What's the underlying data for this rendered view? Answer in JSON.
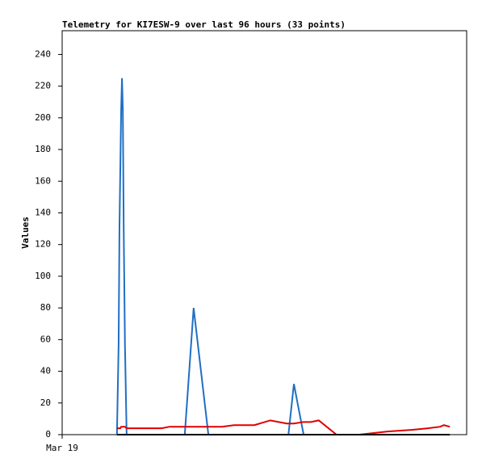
{
  "chart_data": {
    "type": "line",
    "title": "Telemetry for KI7ESW-9 over last 96 hours (33 points)",
    "y_label": "Values",
    "x": [
      13.0,
      13.4,
      13.6,
      13.8,
      14.0,
      14.2,
      14.4,
      14.6,
      14.9,
      15.3,
      23.6,
      25.5,
      29.1,
      31.2,
      34.7,
      37.9,
      40.8,
      45.6,
      49.4,
      53.3,
      53.7,
      55.0,
      57.3,
      59.0,
      60.9,
      65.1,
      70.5,
      77.2,
      82.9,
      86.8,
      89.7,
      90.6,
      92.0
    ],
    "series": [
      {
        "color": "#1f6fc5",
        "values": [
          0,
          57,
          131,
          168,
          205,
          225,
          205,
          131,
          57,
          0,
          0,
          0,
          0,
          80,
          0,
          0,
          0,
          0,
          0,
          0,
          0,
          32,
          0,
          0,
          0,
          0,
          0,
          0,
          0,
          0,
          0,
          0,
          0
        ]
      },
      {
        "color": "#e00000",
        "values": [
          4,
          4,
          4,
          4,
          5,
          5,
          5,
          5,
          5,
          4,
          4,
          5,
          5,
          5,
          5,
          5,
          6,
          6,
          9,
          7,
          7,
          7,
          8,
          8,
          9,
          0,
          0,
          2,
          3,
          4,
          5,
          6,
          5
        ]
      },
      {
        "color": "#000000",
        "values": [
          0,
          0,
          0,
          0,
          0,
          0,
          0,
          0,
          0,
          0,
          0,
          0,
          0,
          0,
          0,
          0,
          0,
          0,
          0,
          0,
          0,
          0,
          0,
          0,
          0,
          0,
          0,
          0,
          0,
          0,
          0,
          0,
          0
        ]
      }
    ],
    "xlim": [
      0,
      96
    ],
    "xticks": [
      {
        "value": 0,
        "label": "Mar 19"
      }
    ],
    "ylim": [
      0,
      255
    ],
    "yticks": [
      0,
      20,
      40,
      60,
      80,
      100,
      120,
      140,
      160,
      180,
      200,
      220,
      240
    ]
  }
}
